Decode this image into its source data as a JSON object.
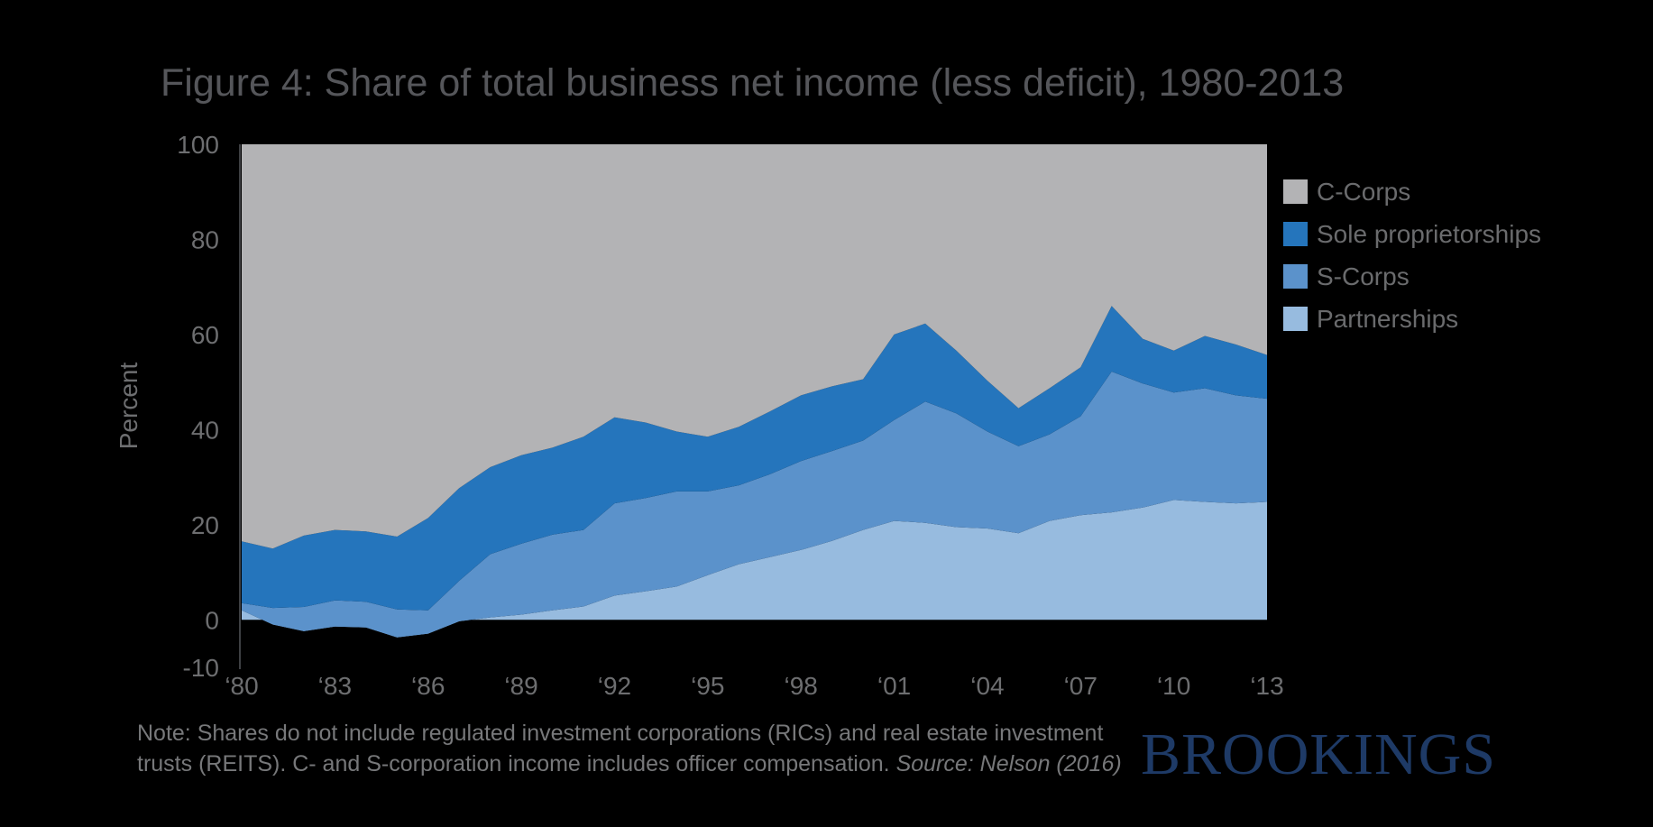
{
  "page": {
    "background": "#000000"
  },
  "title": {
    "text": "Figure 4: Share of total business net income (less deficit), 1980-2013"
  },
  "chart_data": {
    "type": "area",
    "stacked": true,
    "title": "Figure 4: Share of total business net income (less deficit), 1980-2013",
    "xlabel": "",
    "ylabel": "Percent",
    "ylim": [
      -10,
      100
    ],
    "grid": false,
    "legend_position": "upper-right",
    "y_ticks": [
      100,
      80,
      60,
      40,
      20,
      0,
      -10
    ],
    "x_ticks": [
      {
        "year": 1980,
        "label": "‘80"
      },
      {
        "year": 1983,
        "label": "‘83"
      },
      {
        "year": 1986,
        "label": "‘86"
      },
      {
        "year": 1989,
        "label": "‘89"
      },
      {
        "year": 1992,
        "label": "‘92"
      },
      {
        "year": 1995,
        "label": "‘95"
      },
      {
        "year": 1998,
        "label": "‘98"
      },
      {
        "year": 2001,
        "label": "‘01"
      },
      {
        "year": 2004,
        "label": "‘04"
      },
      {
        "year": 2007,
        "label": "‘07"
      },
      {
        "year": 2010,
        "label": "‘10"
      },
      {
        "year": 2013,
        "label": "‘13"
      }
    ],
    "years": [
      1980,
      1981,
      1982,
      1983,
      1984,
      1985,
      1986,
      1987,
      1988,
      1989,
      1990,
      1991,
      1992,
      1993,
      1994,
      1995,
      1996,
      1997,
      1998,
      1999,
      2000,
      2001,
      2002,
      2003,
      2004,
      2005,
      2006,
      2007,
      2008,
      2009,
      2010,
      2011,
      2012,
      2013
    ],
    "series": [
      {
        "name": "Partnerships",
        "color": "#97bbdf",
        "values": [
          2.0,
          -1.0,
          -2.4,
          -1.4,
          -1.6,
          -3.7,
          -2.9,
          -0.3,
          0.5,
          1.1,
          2.0,
          2.8,
          5.1,
          6.0,
          7.0,
          9.4,
          11.7,
          13.2,
          14.7,
          16.6,
          18.9,
          20.8,
          20.4,
          19.5,
          19.2,
          18.2,
          20.8,
          22.0,
          22.6,
          23.6,
          25.2,
          24.8,
          24.5,
          24.8
        ]
      },
      {
        "name": "S-Corps",
        "color": "#5b92cb",
        "values": [
          1.5,
          3.5,
          5.1,
          5.5,
          5.4,
          5.9,
          4.9,
          8.5,
          13.3,
          14.9,
          15.9,
          16.1,
          19.4,
          19.6,
          20.0,
          17.6,
          16.6,
          17.4,
          18.7,
          18.9,
          18.8,
          21.2,
          25.5,
          23.9,
          20.4,
          18.3,
          18.2,
          20.8,
          29.6,
          26.1,
          22.6,
          23.9,
          22.7,
          21.7
        ]
      },
      {
        "name": "Sole proprietorships",
        "color": "#2575bc",
        "values": [
          13.0,
          12.5,
          15.0,
          14.8,
          14.8,
          15.3,
          19.4,
          19.5,
          18.3,
          18.6,
          18.3,
          19.6,
          18.1,
          15.9,
          12.6,
          11.5,
          12.3,
          13.2,
          13.8,
          13.6,
          12.9,
          18.0,
          16.4,
          13.2,
          10.7,
          8.0,
          9.7,
          10.3,
          13.8,
          9.4,
          8.8,
          11.0,
          10.7,
          9.2
        ]
      },
      {
        "name": "C-Corps",
        "color": "#b3b3b5",
        "values": [
          83.5,
          85.0,
          82.3,
          81.1,
          81.4,
          82.5,
          78.6,
          72.3,
          67.9,
          65.4,
          63.8,
          61.5,
          57.4,
          58.5,
          60.4,
          61.5,
          59.4,
          56.2,
          52.8,
          50.9,
          49.4,
          40.0,
          37.7,
          43.4,
          49.7,
          55.5,
          51.3,
          46.9,
          34.0,
          40.9,
          43.4,
          40.3,
          42.1,
          44.3
        ]
      }
    ],
    "stacking_note": "Series painted in array order from baseline 0; negatives extend below zero; C-Corps fills stack to 100.",
    "legend": {
      "items": [
        {
          "label": "C-Corps",
          "color": "#b3b3b5"
        },
        {
          "label": "Sole proprietorships",
          "color": "#2575bc"
        },
        {
          "label": "S-Corps",
          "color": "#5b92cb"
        },
        {
          "label": "Partnerships",
          "color": "#97bbdf"
        }
      ]
    }
  },
  "axis": {
    "text_color": "#6d6e70",
    "spine_color": "#3e4043",
    "legend_text_color": "#6a6b6d"
  },
  "note": {
    "line1": "Note: Shares do not include regulated investment corporations (RICs) and real estate investment",
    "line2": "trusts (REITS). C- and S-corporation income includes officer compensation. ",
    "source_italic": "Source: Nelson (2016)"
  },
  "logo": {
    "text": "BROOKINGS",
    "color": "#1e3a66"
  }
}
